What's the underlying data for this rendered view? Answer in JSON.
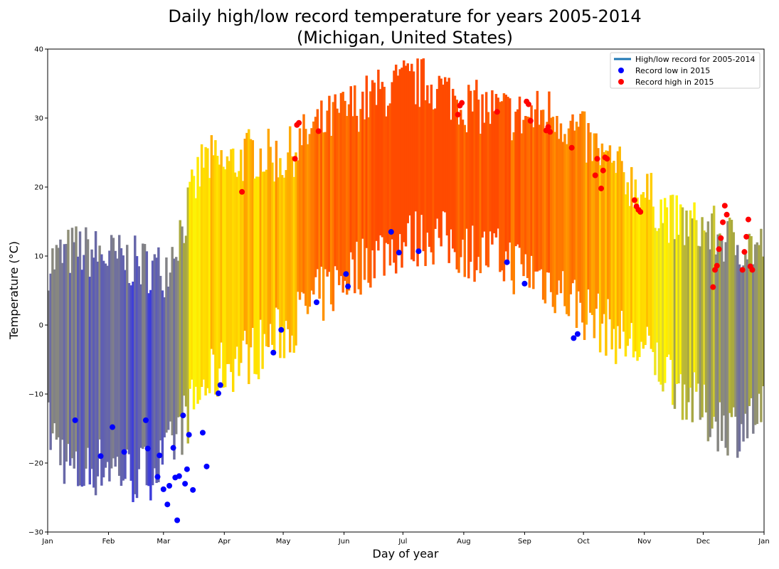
{
  "chart_data": {
    "type": "bar",
    "title_line1": "Daily high/low record temperature for years 2005-2014",
    "title_line2": "(Michigan, United States)",
    "xlabel": "Day of year",
    "ylabel": "Temperature (°C)",
    "xlim": [
      1,
      366
    ],
    "ylim": [
      -30,
      40
    ],
    "yticks": [
      -30,
      -20,
      -10,
      0,
      10,
      20,
      30,
      40
    ],
    "xticks": [
      {
        "label": "Jan",
        "day": 1
      },
      {
        "label": "Feb",
        "day": 32
      },
      {
        "label": "Mar",
        "day": 60
      },
      {
        "label": "Apr",
        "day": 91
      },
      {
        "label": "May",
        "day": 121
      },
      {
        "label": "Jun",
        "day": 152
      },
      {
        "label": "Jul",
        "day": 182
      },
      {
        "label": "Aug",
        "day": 213
      },
      {
        "label": "Sep",
        "day": 244
      },
      {
        "label": "Oct",
        "day": 274
      },
      {
        "label": "Nov",
        "day": 305
      },
      {
        "label": "Dec",
        "day": 335
      },
      {
        "label": "Jan",
        "day": 366
      }
    ],
    "grid": false,
    "legend_position": "top-right",
    "legend": [
      {
        "label": "High/low record for 2005-2014",
        "kind": "line",
        "color": "#1f77b4"
      },
      {
        "label": "Record low in 2015",
        "kind": "dot",
        "color": "#0000ff"
      },
      {
        "label": "Record high in 2015",
        "kind": "dot",
        "color": "#ff0000"
      }
    ],
    "series": [
      {
        "name": "High/low record for 2005-2014",
        "kind": "range-bars",
        "anchors_high": [
          [
            1,
            9
          ],
          [
            15,
            11
          ],
          [
            30,
            10
          ],
          [
            45,
            9
          ],
          [
            60,
            8
          ],
          [
            70,
            15
          ],
          [
            80,
            24
          ],
          [
            91,
            23
          ],
          [
            105,
            25
          ],
          [
            121,
            24
          ],
          [
            135,
            28
          ],
          [
            152,
            31
          ],
          [
            166,
            33
          ],
          [
            182,
            35
          ],
          [
            196,
            35
          ],
          [
            213,
            32
          ],
          [
            228,
            31
          ],
          [
            244,
            30
          ],
          [
            258,
            31
          ],
          [
            274,
            27
          ],
          [
            288,
            23
          ],
          [
            305,
            19
          ],
          [
            320,
            15
          ],
          [
            335,
            14
          ],
          [
            350,
            12
          ],
          [
            366,
            11
          ]
        ],
        "anchors_low": [
          [
            1,
            -15
          ],
          [
            15,
            -22
          ],
          [
            30,
            -20
          ],
          [
            45,
            -22
          ],
          [
            60,
            -20
          ],
          [
            70,
            -14
          ],
          [
            80,
            -9
          ],
          [
            91,
            -6
          ],
          [
            105,
            -4
          ],
          [
            121,
            -1
          ],
          [
            135,
            3
          ],
          [
            152,
            7
          ],
          [
            166,
            10
          ],
          [
            182,
            12
          ],
          [
            196,
            13
          ],
          [
            213,
            11
          ],
          [
            228,
            10
          ],
          [
            244,
            8
          ],
          [
            258,
            6
          ],
          [
            274,
            2
          ],
          [
            288,
            -1
          ],
          [
            305,
            -4
          ],
          [
            320,
            -8
          ],
          [
            335,
            -13
          ],
          [
            350,
            -15
          ],
          [
            366,
            -13
          ]
        ]
      },
      {
        "name": "Record low in 2015",
        "kind": "dots",
        "color": "#0000ff",
        "points": [
          [
            15,
            -13.8
          ],
          [
            28,
            -19
          ],
          [
            34,
            -14.8
          ],
          [
            40,
            -18.4
          ],
          [
            51,
            -13.8
          ],
          [
            52,
            -17.9
          ],
          [
            57,
            -22
          ],
          [
            58,
            -18.9
          ],
          [
            60,
            -23.8
          ],
          [
            62,
            -26
          ],
          [
            63,
            -23.3
          ],
          [
            65,
            -17.8
          ],
          [
            66,
            -22.1
          ],
          [
            67,
            -28.3
          ],
          [
            68,
            -21.9
          ],
          [
            70,
            -13.1
          ],
          [
            71,
            -23
          ],
          [
            72,
            -20.9
          ],
          [
            73,
            -15.9
          ],
          [
            75,
            -23.9
          ],
          [
            80,
            -15.6
          ],
          [
            82,
            -20.5
          ],
          [
            88,
            -9.9
          ],
          [
            89,
            -8.7
          ],
          [
            116,
            -4
          ],
          [
            120,
            -0.7
          ],
          [
            138,
            3.3
          ],
          [
            153,
            7.4
          ],
          [
            154,
            5.6
          ],
          [
            176,
            13.5
          ],
          [
            180,
            10.5
          ],
          [
            190,
            10.7
          ],
          [
            235,
            9.1
          ],
          [
            244,
            6
          ],
          [
            269,
            -1.9
          ],
          [
            271,
            -1.3
          ]
        ],
        "note_day_scale": "days 1-366"
      },
      {
        "name": "Record high in 2015",
        "kind": "dots",
        "color": "#ff0000",
        "points": [
          [
            100,
            19.3
          ],
          [
            127,
            24.1
          ],
          [
            128,
            29
          ],
          [
            129,
            29.3
          ],
          [
            139,
            28.1
          ],
          [
            210,
            30.5
          ],
          [
            211,
            31.8
          ],
          [
            212,
            32.2
          ],
          [
            230,
            30.9
          ],
          [
            245,
            32.4
          ],
          [
            246,
            32
          ],
          [
            247,
            29.6
          ],
          [
            255,
            28.2
          ],
          [
            256,
            28.7
          ],
          [
            257,
            28
          ],
          [
            268,
            25.7
          ],
          [
            280,
            21.7
          ],
          [
            281,
            24.1
          ],
          [
            283,
            19.8
          ],
          [
            284,
            22.4
          ],
          [
            285,
            24.3
          ],
          [
            286,
            24.1
          ],
          [
            300,
            18.1
          ],
          [
            301,
            17.2
          ],
          [
            302,
            16.7
          ],
          [
            303,
            16.4
          ],
          [
            340,
            5.5
          ],
          [
            341,
            8
          ],
          [
            342,
            8.6
          ],
          [
            343,
            11
          ],
          [
            344,
            12.6
          ],
          [
            345,
            14.9
          ],
          [
            346,
            17.3
          ],
          [
            347,
            16
          ],
          [
            355,
            8
          ],
          [
            356,
            10.6
          ],
          [
            357,
            12.8
          ],
          [
            358,
            15.3
          ],
          [
            359,
            8.5
          ],
          [
            360,
            8
          ]
        ]
      }
    ]
  }
}
